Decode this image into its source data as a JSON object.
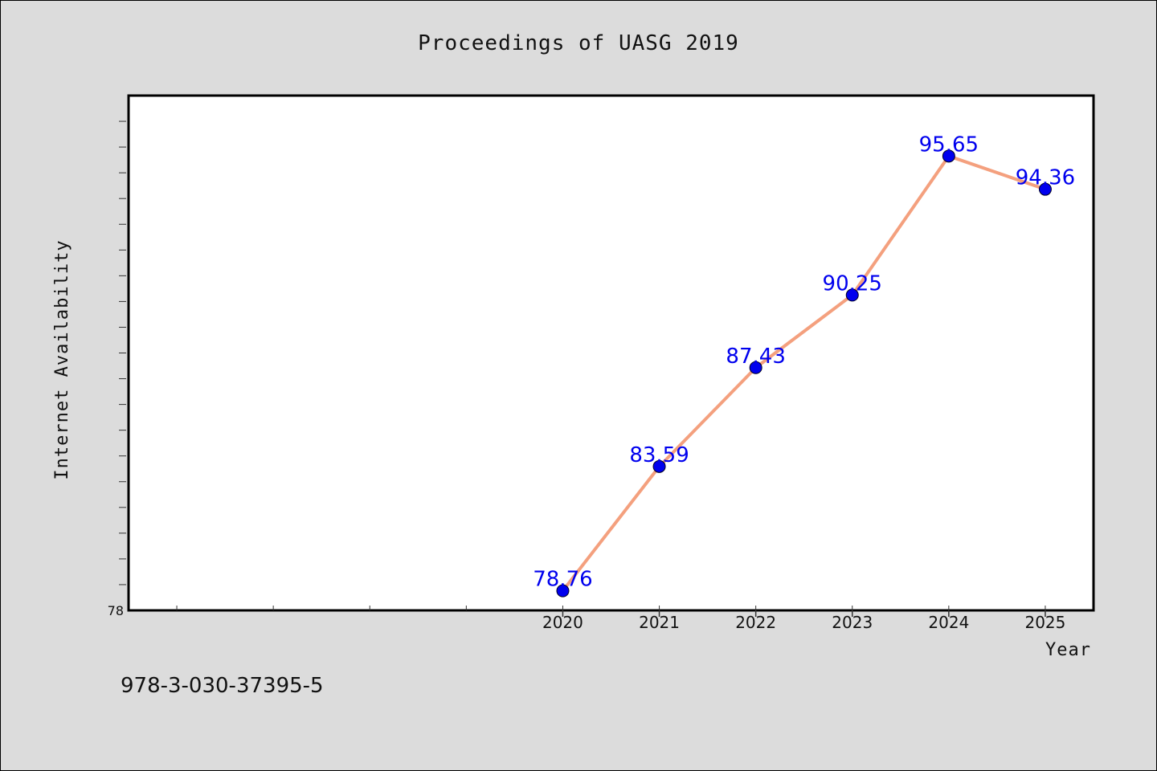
{
  "chart_data": {
    "type": "line",
    "title": "Proceedings of UASG 2019",
    "xlabel": "Year",
    "ylabel": "Internet Availability",
    "x": [
      "2020",
      "2021",
      "2022",
      "2023",
      "2024",
      "2025"
    ],
    "series": [
      {
        "values": [
          78.76,
          83.59,
          87.43,
          90.25,
          95.65,
          94.36
        ]
      }
    ],
    "data_labels": [
      "78.76",
      "83.59",
      "87.43",
      "90.25",
      "95.65",
      "94.36"
    ],
    "y_tick_labels": [
      "78"
    ],
    "ylim": [
      78,
      98
    ],
    "x_axis_span_years": [
      2015.5,
      2025.5
    ],
    "grid": false,
    "legend": "none",
    "colors": {
      "line": "#f4a07e",
      "marker": "#0000ee",
      "label": "#0000ee"
    }
  },
  "footer": {
    "isbn": "978-3-030-37395-5"
  }
}
